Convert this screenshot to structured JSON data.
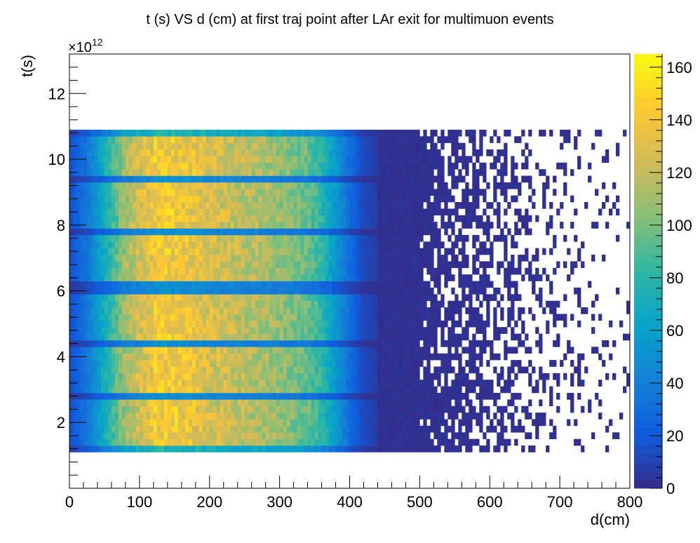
{
  "chart_data": {
    "type": "heatmap",
    "title": "t (s) VS d (cm) at first traj point after LAr exit for multimuon events",
    "xlabel": "d(cm)",
    "ylabel": "t(s)",
    "y_exponent_label": "×10",
    "y_exponent_power": "12",
    "xlim": [
      0,
      800
    ],
    "ylim": [
      0,
      13.2
    ],
    "y_scale": "1e12",
    "x_ticks": [
      0,
      100,
      200,
      300,
      400,
      500,
      600,
      700,
      800
    ],
    "y_ticks": [
      2,
      4,
      6,
      8,
      10,
      12
    ],
    "colorbar": {
      "range": [
        0,
        165
      ],
      "ticks": [
        0,
        20,
        40,
        60,
        80,
        100,
        120,
        140,
        160
      ],
      "palette": "parula",
      "palette_stops": [
        "#352a87",
        "#0f5cdd",
        "#1481d6",
        "#06a4ca",
        "#2eb7a4",
        "#87bf77",
        "#d1bb59",
        "#fec832",
        "#f9fb0e"
      ]
    },
    "bins": {
      "x_width_cm": 5,
      "y_width": 0.2
    },
    "data_extent": {
      "x_range": [
        0,
        800
      ],
      "y_range": [
        1.1,
        10.9
      ]
    },
    "density_profile_x": [
      {
        "d": 0,
        "count": 15
      },
      {
        "d": 25,
        "count": 35
      },
      {
        "d": 50,
        "count": 70
      },
      {
        "d": 75,
        "count": 105
      },
      {
        "d": 100,
        "count": 125
      },
      {
        "d": 125,
        "count": 140
      },
      {
        "d": 150,
        "count": 140
      },
      {
        "d": 175,
        "count": 135
      },
      {
        "d": 200,
        "count": 128
      },
      {
        "d": 250,
        "count": 118
      },
      {
        "d": 300,
        "count": 108
      },
      {
        "d": 340,
        "count": 95
      },
      {
        "d": 360,
        "count": 80
      },
      {
        "d": 380,
        "count": 55
      },
      {
        "d": 400,
        "count": 30
      },
      {
        "d": 420,
        "count": 12
      },
      {
        "d": 450,
        "count": 6
      },
      {
        "d": 480,
        "count": 3
      },
      {
        "d": 500,
        "count": 1
      },
      {
        "d": 600,
        "count": 0.6
      },
      {
        "d": 700,
        "count": 0.25
      },
      {
        "d": 800,
        "count": 0.1
      }
    ],
    "low_count_gaps_t": [
      2.75,
      4.45,
      6.1,
      7.75,
      9.35
    ],
    "grid": false,
    "legend": "none"
  }
}
